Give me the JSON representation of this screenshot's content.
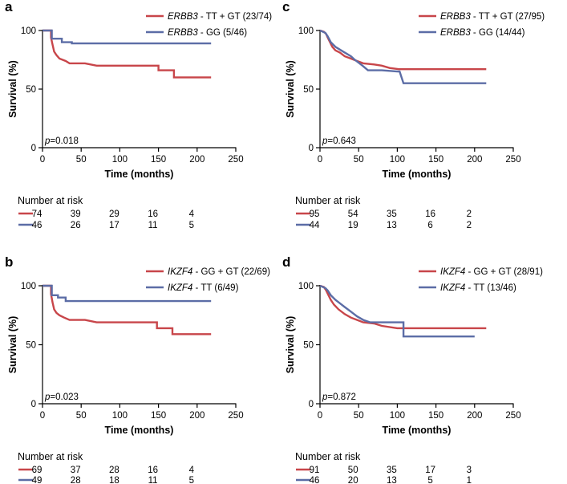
{
  "colors": {
    "red": "#c8464a",
    "blue": "#5c6da6"
  },
  "chart_data": [
    {
      "type": "line",
      "panel_label": "a",
      "xlabel": "Time (months)",
      "ylabel": "Survival (%)",
      "xlim": [
        0,
        250
      ],
      "ylim": [
        0,
        100
      ],
      "xticks": [
        "0",
        "50",
        "100",
        "150",
        "200",
        "250"
      ],
      "yticks": [
        "0",
        "50",
        "100"
      ],
      "pvalue_prefix": "p",
      "pvalue": "=0.018",
      "legend_position": "top-right",
      "series": [
        {
          "gene": "ERBB3",
          "name": " - TT + GT (23/74)",
          "color": "red",
          "points": [
            [
              0,
              100
            ],
            [
              11,
              100
            ],
            [
              11,
              94
            ],
            [
              13,
              88
            ],
            [
              15,
              82
            ],
            [
              18,
              79
            ],
            [
              22,
              76
            ],
            [
              30,
              74
            ],
            [
              35,
              72
            ],
            [
              55,
              72
            ],
            [
              70,
              70
            ],
            [
              150,
              70
            ],
            [
              150,
              66
            ],
            [
              170,
              66
            ],
            [
              170,
              60
            ],
            [
              218,
              60
            ]
          ]
        },
        {
          "gene": "ERBB3",
          "name": " - GG (5/46)",
          "color": "blue",
          "points": [
            [
              0,
              100
            ],
            [
              12,
              100
            ],
            [
              12,
              93
            ],
            [
              25,
              93
            ],
            [
              25,
              90
            ],
            [
              38,
              90
            ],
            [
              38,
              89
            ],
            [
              218,
              89
            ]
          ]
        }
      ],
      "risk": {
        "title": "Number at risk",
        "rows": [
          {
            "color": "red",
            "values": [
              "74",
              "39",
              "29",
              "16",
              "4"
            ]
          },
          {
            "color": "blue",
            "values": [
              "46",
              "26",
              "17",
              "11",
              "5"
            ]
          }
        ]
      }
    },
    {
      "type": "line",
      "panel_label": "c",
      "xlabel": "Time (months)",
      "ylabel": "Survival (%)",
      "xlim": [
        0,
        250
      ],
      "ylim": [
        0,
        100
      ],
      "xticks": [
        "0",
        "50",
        "100",
        "150",
        "200",
        "250"
      ],
      "yticks": [
        "0",
        "50",
        "100"
      ],
      "pvalue_prefix": "p",
      "pvalue": "=0.643",
      "legend_position": "top-right",
      "series": [
        {
          "gene": "ERBB3",
          "name": " - TT + GT (27/95)",
          "color": "red",
          "points": [
            [
              0,
              100
            ],
            [
              5,
              99
            ],
            [
              8,
              97
            ],
            [
              10,
              94
            ],
            [
              13,
              90
            ],
            [
              16,
              86
            ],
            [
              20,
              83
            ],
            [
              26,
              81
            ],
            [
              32,
              78
            ],
            [
              40,
              76
            ],
            [
              48,
              74
            ],
            [
              56,
              72
            ],
            [
              70,
              71
            ],
            [
              80,
              70
            ],
            [
              90,
              68
            ],
            [
              102,
              67
            ],
            [
              215,
              67
            ]
          ]
        },
        {
          "gene": "ERBB3",
          "name": " - GG (14/44)",
          "color": "blue",
          "points": [
            [
              0,
              100
            ],
            [
              7,
              98
            ],
            [
              10,
              95
            ],
            [
              14,
              90
            ],
            [
              20,
              86
            ],
            [
              30,
              82
            ],
            [
              40,
              78
            ],
            [
              45,
              75
            ],
            [
              55,
              70
            ],
            [
              62,
              66
            ],
            [
              80,
              66
            ],
            [
              100,
              65
            ],
            [
              103,
              65
            ],
            [
              108,
              55
            ],
            [
              215,
              55
            ]
          ]
        }
      ],
      "risk": {
        "title": "Number at risk",
        "rows": [
          {
            "color": "red",
            "values": [
              "95",
              "54",
              "35",
              "16",
              "2"
            ]
          },
          {
            "color": "blue",
            "values": [
              "44",
              "19",
              "13",
              "6",
              "2"
            ]
          }
        ]
      }
    },
    {
      "type": "line",
      "panel_label": "b",
      "xlabel": "Time (months)",
      "ylabel": "Survival (%)",
      "xlim": [
        0,
        250
      ],
      "ylim": [
        0,
        100
      ],
      "xticks": [
        "0",
        "50",
        "100",
        "150",
        "200",
        "250"
      ],
      "yticks": [
        "0",
        "50",
        "100"
      ],
      "pvalue_prefix": "p",
      "pvalue": "=0.023",
      "legend_position": "top-right",
      "series": [
        {
          "gene": "IKZF4",
          "name": " - GG + GT (22/69)",
          "color": "red",
          "points": [
            [
              0,
              100
            ],
            [
              11,
              100
            ],
            [
              11,
              93
            ],
            [
              13,
              86
            ],
            [
              15,
              80
            ],
            [
              18,
              77
            ],
            [
              22,
              75
            ],
            [
              28,
              73
            ],
            [
              35,
              71
            ],
            [
              55,
              71
            ],
            [
              70,
              69
            ],
            [
              148,
              69
            ],
            [
              148,
              64
            ],
            [
              168,
              64
            ],
            [
              168,
              59
            ],
            [
              218,
              59
            ]
          ]
        },
        {
          "gene": "IKZF4",
          "name": " - TT (6/49)",
          "color": "blue",
          "points": [
            [
              0,
              100
            ],
            [
              12,
              100
            ],
            [
              12,
              92
            ],
            [
              20,
              92
            ],
            [
              20,
              90
            ],
            [
              30,
              90
            ],
            [
              30,
              87
            ],
            [
              218,
              87
            ]
          ]
        }
      ],
      "risk": {
        "title": "Number at risk",
        "rows": [
          {
            "color": "red",
            "values": [
              "69",
              "37",
              "28",
              "16",
              "4"
            ]
          },
          {
            "color": "blue",
            "values": [
              "49",
              "28",
              "18",
              "11",
              "5"
            ]
          }
        ]
      }
    },
    {
      "type": "line",
      "panel_label": "d",
      "xlabel": "Time (months)",
      "ylabel": "Survival (%)",
      "xlim": [
        0,
        250
      ],
      "ylim": [
        0,
        100
      ],
      "xticks": [
        "0",
        "50",
        "100",
        "150",
        "200",
        "250"
      ],
      "yticks": [
        "0",
        "50",
        "100"
      ],
      "pvalue_prefix": "p",
      "pvalue": "=0.872",
      "legend_position": "top-right",
      "series": [
        {
          "gene": "IKZF4",
          "name": " - GG + GT (28/91)",
          "color": "red",
          "points": [
            [
              0,
              100
            ],
            [
              5,
              99
            ],
            [
              8,
              96
            ],
            [
              11,
              92
            ],
            [
              14,
              88
            ],
            [
              18,
              84
            ],
            [
              24,
              80
            ],
            [
              32,
              76
            ],
            [
              40,
              73
            ],
            [
              48,
              71
            ],
            [
              56,
              69
            ],
            [
              70,
              68
            ],
            [
              80,
              66
            ],
            [
              100,
              64
            ],
            [
              215,
              64
            ]
          ]
        },
        {
          "gene": "IKZF4",
          "name": " - TT (13/46)",
          "color": "blue",
          "points": [
            [
              0,
              100
            ],
            [
              7,
              98
            ],
            [
              10,
              96
            ],
            [
              14,
              92
            ],
            [
              20,
              88
            ],
            [
              26,
              85
            ],
            [
              32,
              82
            ],
            [
              40,
              78
            ],
            [
              48,
              74
            ],
            [
              56,
              71
            ],
            [
              65,
              69
            ],
            [
              108,
              69
            ],
            [
              108,
              57
            ],
            [
              200,
              57
            ]
          ]
        }
      ],
      "risk": {
        "title": "Number at risk",
        "rows": [
          {
            "color": "red",
            "values": [
              "91",
              "50",
              "35",
              "17",
              "3"
            ]
          },
          {
            "color": "blue",
            "values": [
              "46",
              "20",
              "13",
              "5",
              "1"
            ]
          }
        ]
      }
    }
  ]
}
